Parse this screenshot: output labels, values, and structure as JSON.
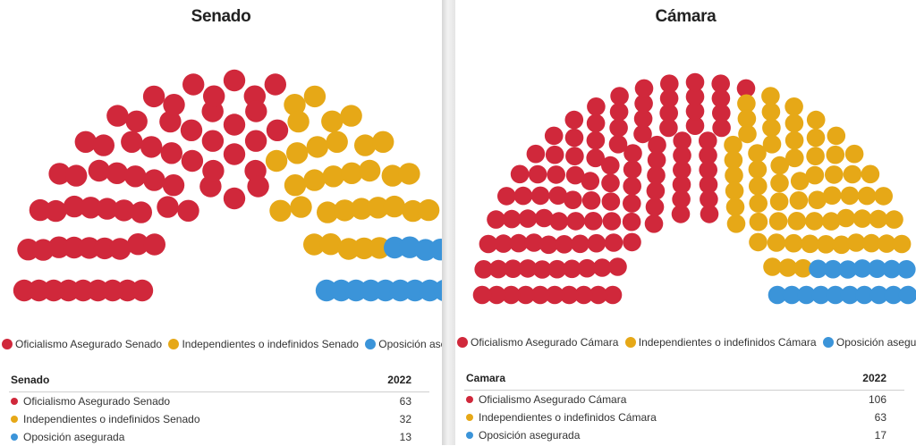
{
  "chart_data": [
    {
      "type": "parliament",
      "title": "Senado",
      "series": [
        {
          "name": "Oficialismo Asegurado Senado",
          "value": 63,
          "color": "#d0283b"
        },
        {
          "name": "Independientes o indefinidos Senado",
          "value": 32,
          "color": "#e6a817"
        },
        {
          "name": "Oposición asegurada",
          "value": 13,
          "color": "#3b94d9"
        }
      ],
      "table": {
        "header": "Senado",
        "year": "2022",
        "rows": [
          {
            "label": "Oficialismo Asegurado Senado",
            "value": "63"
          },
          {
            "label": "Independientes o indefinidos Senado",
            "value": "32"
          },
          {
            "label": "Oposición asegurada",
            "value": "13"
          }
        ]
      }
    },
    {
      "type": "parliament",
      "title": "Cámara",
      "series": [
        {
          "name": "Oficialismo Asegurado Cámara",
          "value": 106,
          "color": "#d0283b"
        },
        {
          "name": "Independientes o indefinidos Cámara",
          "value": 63,
          "color": "#e6a817"
        },
        {
          "name": "Oposición asegurada",
          "value": 17,
          "color": "#3b94d9"
        }
      ],
      "table": {
        "header": "Camara",
        "year": "2022",
        "rows": [
          {
            "label": "Oficialismo Asegurado Cámara",
            "value": "106"
          },
          {
            "label": "Independientes o indefinidos Cámara",
            "value": "63"
          },
          {
            "label": "Oposición asegurada",
            "value": "17"
          }
        ]
      }
    }
  ]
}
